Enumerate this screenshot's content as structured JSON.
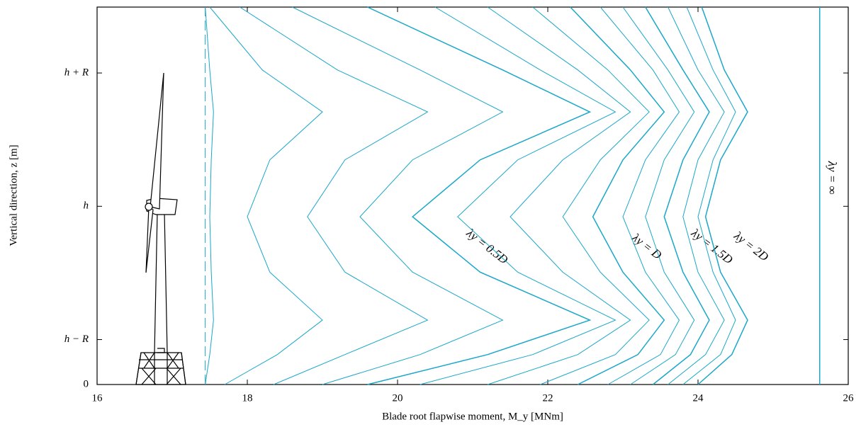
{
  "chart_data": {
    "type": "line",
    "xlabel": "Blade root flapwise moment, M_y [MNm]",
    "ylabel": "Vertical direction, z [m]",
    "color": "#1aa7c9",
    "xlim": [
      16,
      26
    ],
    "xticks": [
      16,
      18,
      20,
      22,
      24,
      26
    ],
    "ylim": [
      0,
      252
    ],
    "yticks": [
      0,
      {
        "value": 30,
        "label": "h − R"
      },
      {
        "value": 119,
        "label": "h"
      },
      {
        "value": 208,
        "label": "h + R"
      }
    ],
    "y": [
      0,
      20,
      43,
      75,
      112,
      150,
      182,
      210,
      252
    ],
    "series": [
      {
        "dashed": true,
        "values": [
          17.44,
          17.44,
          17.44,
          17.44,
          17.44,
          17.44,
          17.44,
          17.44,
          17.44
        ]
      },
      {
        "values": [
          17.44,
          17.5,
          17.55,
          17.52,
          17.5,
          17.52,
          17.55,
          17.5,
          17.44
        ]
      },
      {
        "values": [
          17.7,
          18.4,
          19.0,
          18.3,
          18.0,
          18.3,
          19.0,
          18.2,
          17.5
        ]
      },
      {
        "values": [
          18.35,
          19.3,
          20.4,
          19.3,
          18.8,
          19.3,
          20.4,
          19.2,
          17.9
        ]
      },
      {
        "values": [
          19.0,
          20.3,
          21.4,
          20.2,
          19.5,
          20.2,
          21.4,
          20.3,
          18.6
        ]
      },
      {
        "name": "λy = 0.5D",
        "values": [
          19.6,
          21.2,
          22.56,
          21.1,
          20.2,
          21.1,
          22.56,
          21.4,
          19.6
        ]
      },
      {
        "values": [
          20.3,
          21.8,
          22.9,
          21.6,
          20.8,
          21.6,
          22.9,
          21.9,
          20.5
        ]
      },
      {
        "values": [
          21.2,
          22.4,
          23.1,
          22.2,
          21.5,
          22.2,
          23.1,
          22.4,
          21.2
        ]
      },
      {
        "values": [
          21.9,
          22.9,
          23.35,
          22.7,
          22.2,
          22.7,
          23.35,
          22.8,
          21.8
        ]
      },
      {
        "name": "λy = D",
        "values": [
          22.4,
          23.2,
          23.55,
          23.0,
          22.6,
          23.0,
          23.55,
          23.1,
          22.3
        ]
      },
      {
        "values": [
          22.8,
          23.5,
          23.75,
          23.3,
          23.0,
          23.3,
          23.75,
          23.4,
          22.7
        ]
      },
      {
        "values": [
          23.1,
          23.7,
          23.95,
          23.55,
          23.3,
          23.55,
          23.95,
          23.6,
          23.0
        ]
      },
      {
        "name": "λy = 1.5D",
        "values": [
          23.4,
          23.9,
          24.15,
          23.8,
          23.55,
          23.8,
          24.15,
          23.8,
          23.3
        ]
      },
      {
        "values": [
          23.6,
          24.1,
          24.35,
          24.0,
          23.8,
          24.0,
          24.35,
          24.0,
          23.6
        ]
      },
      {
        "values": [
          23.8,
          24.3,
          24.5,
          24.2,
          24.0,
          24.2,
          24.5,
          24.2,
          23.85
        ]
      },
      {
        "name": "λy = 2D",
        "values": [
          24.0,
          24.45,
          24.66,
          24.3,
          24.1,
          24.3,
          24.66,
          24.35,
          24.05
        ]
      },
      {
        "name": "λy = ∞",
        "vertical_label": true,
        "values": [
          25.62,
          25.62,
          25.62,
          25.62,
          25.62,
          25.62,
          25.62,
          25.62,
          25.62
        ]
      }
    ]
  }
}
